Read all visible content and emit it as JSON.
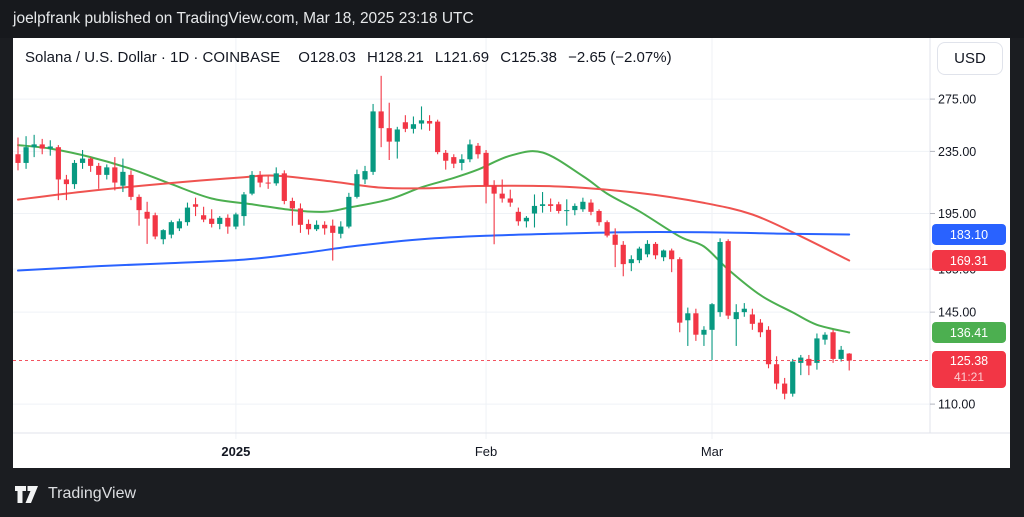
{
  "banner": {
    "text": "joelpfrank published on TradingView.com, Mar 18, 2025 23:18 UTC"
  },
  "header": {
    "title": "Solana / U.S. Dollar · 1D · COINBASE",
    "ohlc": [
      {
        "label": "O",
        "value": "O128.03"
      },
      {
        "label": "H",
        "value": "H128.21"
      },
      {
        "label": "L",
        "value": "L121.69"
      },
      {
        "label": "C",
        "value": "C125.38"
      }
    ],
    "change": "−2.65 (−2.07%)"
  },
  "currency_button": {
    "label": "USD"
  },
  "footer": {
    "brand": "TradingView"
  },
  "chart_data": {
    "type": "candlestick",
    "symbol": "Solana / U.S. Dollar",
    "interval": "1D",
    "exchange": "COINBASE",
    "scale": "log",
    "grid": true,
    "colors": {
      "up": "#089981",
      "down": "#f23645",
      "grid": "#eff2f6",
      "axis_border": "#e0e3eb",
      "axis_text": "#131722",
      "tick": "#b2b5be",
      "last_price_line": "#f23645"
    },
    "y_axis": {
      "tick_labels": [
        "275.00",
        "235.00",
        "195.00",
        "165.00",
        "145.00",
        "110.00"
      ],
      "tick_values": [
        275,
        235,
        195,
        165,
        145,
        110
      ]
    },
    "x_axis": {
      "labels": [
        {
          "text": "2025",
          "bar_index": 27,
          "bold": true
        },
        {
          "text": "Feb",
          "bar_index": 58,
          "bold": false
        },
        {
          "text": "Mar",
          "bar_index": 86,
          "bold": false
        }
      ]
    },
    "price_badges": [
      {
        "value": "183.10",
        "price": 183.1,
        "bg": "#2962ff",
        "name": "ma-blue-value"
      },
      {
        "value": "169.31",
        "price": 169.31,
        "bg": "#f23645",
        "name": "ma-red-value"
      },
      {
        "value": "136.41",
        "price": 136.41,
        "bg": "#4caf50",
        "name": "ma-green-value"
      },
      {
        "value": "125.38",
        "price": 125.38,
        "bg": "#f23645",
        "countdown": "41:21",
        "name": "last-price"
      }
    ],
    "last_price": {
      "price": 125.38
    },
    "overlays": [
      {
        "name": "ma-green",
        "color": "#4caf50",
        "points": [
          [
            0,
            239.5
          ],
          [
            4,
            237
          ],
          [
            9,
            231
          ],
          [
            14,
            223
          ],
          [
            19,
            213
          ],
          [
            24,
            204
          ],
          [
            29,
            200.5
          ],
          [
            34,
            197
          ],
          [
            38,
            196
          ],
          [
            41,
            198.5
          ],
          [
            46,
            203.5
          ],
          [
            50,
            211
          ],
          [
            54,
            217
          ],
          [
            57,
            222.5
          ],
          [
            61,
            232
          ],
          [
            65,
            234.2
          ],
          [
            70,
            218.2
          ],
          [
            73,
            207
          ],
          [
            77,
            196.3
          ],
          [
            82,
            182
          ],
          [
            85,
            176.6
          ],
          [
            88,
            164.8
          ],
          [
            92,
            152.6
          ],
          [
            96,
            144.9
          ],
          [
            99,
            139.6
          ],
          [
            103,
            136.41
          ]
        ]
      },
      {
        "name": "ma-red",
        "color": "#ef5350",
        "points": [
          [
            0,
            203.3
          ],
          [
            8,
            208.2
          ],
          [
            18,
            213.3
          ],
          [
            28,
            217.5
          ],
          [
            32,
            218.5
          ],
          [
            39,
            214.6
          ],
          [
            45,
            210.8
          ],
          [
            51,
            210.4
          ],
          [
            57,
            211.8
          ],
          [
            67,
            211.5
          ],
          [
            77,
            207.4
          ],
          [
            85,
            201.3
          ],
          [
            91,
            194.4
          ],
          [
            97,
            182.1
          ],
          [
            103,
            169.31
          ]
        ]
      },
      {
        "name": "ma-blue",
        "color": "#2962ff",
        "points": [
          [
            0,
            164.3
          ],
          [
            10,
            166.5
          ],
          [
            19,
            168
          ],
          [
            28,
            169.8
          ],
          [
            35,
            173
          ],
          [
            42,
            177
          ],
          [
            50,
            180.5
          ],
          [
            58,
            182.4
          ],
          [
            67,
            183.6
          ],
          [
            77,
            184.4
          ],
          [
            87,
            184.2
          ],
          [
            94,
            183.6
          ],
          [
            103,
            183.1
          ]
        ]
      }
    ],
    "candles": {
      "columns": [
        "date",
        "open",
        "high",
        "low",
        "close"
      ],
      "rows": [
        [
          "Dec 5",
          233,
          245,
          222,
          227
        ],
        [
          "Dec 6",
          227,
          246,
          223,
          238
        ],
        [
          "Dec 7",
          238,
          247,
          231,
          240
        ],
        [
          "Dec 8",
          240,
          244,
          233,
          237
        ],
        [
          "Dec 9",
          237,
          243,
          232,
          238.5
        ],
        [
          "Dec 10",
          238,
          239.5,
          203,
          216
        ],
        [
          "Dec 11",
          216,
          219,
          203,
          213
        ],
        [
          "Dec 12",
          213,
          229,
          210,
          227
        ],
        [
          "Dec 13",
          227,
          236,
          223,
          230
        ],
        [
          "Dec 14",
          230,
          231,
          221,
          225
        ],
        [
          "Dec 15",
          225,
          227,
          210,
          219
        ],
        [
          "Dec 16",
          219,
          226,
          216,
          224
        ],
        [
          "Dec 17",
          224,
          231,
          209,
          214
        ],
        [
          "Dec 18",
          212,
          230,
          208,
          221
        ],
        [
          "Dec 19",
          219,
          222,
          203,
          205
        ],
        [
          "Dec 20",
          205,
          206.5,
          188,
          197
        ],
        [
          "Dec 21",
          196,
          202,
          178,
          192
        ],
        [
          "Dec 22",
          194,
          195.5,
          180.5,
          182
        ],
        [
          "Dec 23",
          180.5,
          186,
          177.8,
          185.5
        ],
        [
          "Dec 24",
          183,
          191,
          181,
          190
        ],
        [
          "Dec 25",
          186.5,
          192,
          185,
          190.5
        ],
        [
          "Dec 26",
          190,
          201.5,
          188,
          198.5
        ],
        [
          "Dec 27",
          200.5,
          204.5,
          193.5,
          199
        ],
        [
          "Dec 28",
          194,
          199,
          190,
          191.5
        ],
        [
          "Dec 29",
          192,
          197.5,
          187,
          189
        ],
        [
          "Dec 30",
          189,
          193.5,
          186,
          192.5
        ],
        [
          "Dec 31",
          192.5,
          194.5,
          183.5,
          187.5
        ],
        [
          "Jan 1",
          187.5,
          195.5,
          186,
          194.5
        ],
        [
          "Jan 2",
          193.5,
          208,
          188,
          206.5
        ],
        [
          "Jan 3",
          207,
          221.5,
          206,
          219
        ],
        [
          "Jan 4",
          219,
          221.5,
          211,
          214
        ],
        [
          "Jan 5",
          214,
          218,
          210,
          213.5
        ],
        [
          "Jan 6",
          213.5,
          224,
          212,
          220
        ],
        [
          "Jan 7",
          220,
          222,
          200.5,
          202.5
        ],
        [
          "Jan 8",
          202.5,
          204.5,
          188,
          198
        ],
        [
          "Jan 9",
          198,
          201,
          184,
          188.5
        ],
        [
          "Jan 10",
          189,
          191.5,
          183,
          186
        ],
        [
          "Jan 11",
          186,
          191,
          185,
          188.5
        ],
        [
          "Jan 12",
          188.5,
          190.5,
          183,
          186.5
        ],
        [
          "Jan 13",
          188,
          191.5,
          169.3,
          184
        ],
        [
          "Jan 14",
          183.5,
          190.5,
          181,
          187.5
        ],
        [
          "Jan 15",
          187.5,
          207.5,
          186.5,
          205
        ],
        [
          "Jan 16",
          205,
          222.5,
          204,
          219.5
        ],
        [
          "Jan 17",
          216,
          225,
          213,
          221.5
        ],
        [
          "Jan 18",
          221,
          271,
          219,
          265
        ],
        [
          "Jan 19",
          265,
          294.9,
          238,
          252
        ],
        [
          "Jan 20",
          252,
          272,
          229,
          242
        ],
        [
          "Jan 21",
          242,
          253,
          230,
          251
        ],
        [
          "Jan 22",
          256.5,
          262,
          249,
          251.5
        ],
        [
          "Jan 23",
          251.5,
          261,
          248,
          255
        ],
        [
          "Jan 24",
          255.5,
          269,
          251,
          258
        ],
        [
          "Jan 25",
          257.5,
          262,
          250,
          255.5
        ],
        [
          "Jan 26",
          257,
          258.5,
          233,
          234.5
        ],
        [
          "Jan 27",
          234,
          236,
          222.5,
          228.5
        ],
        [
          "Jan 28",
          231,
          233,
          223.5,
          226.5
        ],
        [
          "Jan 29",
          227,
          233,
          222,
          229.5
        ],
        [
          "Jan 30",
          229.5,
          243.5,
          227.5,
          240
        ],
        [
          "Jan 31",
          239,
          241,
          230,
          233
        ],
        [
          "Feb 1",
          234,
          236,
          201,
          212
        ],
        [
          "Feb 2",
          212,
          215.5,
          177.8,
          207
        ],
        [
          "Feb 3",
          207,
          216,
          201.5,
          204
        ],
        [
          "Feb 4",
          204,
          209.5,
          199,
          201.5
        ],
        [
          "Feb 5",
          196,
          198.5,
          188,
          190.5
        ],
        [
          "Feb 6",
          190.5,
          193.5,
          187,
          192.5
        ],
        [
          "Feb 7",
          195,
          206.5,
          187,
          199.5
        ],
        [
          "Feb 8",
          199.5,
          208,
          195.5,
          200.5
        ],
        [
          "Feb 9",
          200.5,
          204,
          196,
          199.5
        ],
        [
          "Feb 10",
          200.5,
          202,
          195,
          196.5
        ],
        [
          "Feb 11",
          196.5,
          203.5,
          188,
          197
        ],
        [
          "Feb 12",
          197,
          201,
          194,
          199.5
        ],
        [
          "Feb 13",
          197.5,
          204.5,
          196,
          202
        ],
        [
          "Feb 14",
          201.5,
          203.5,
          194,
          196
        ],
        [
          "Feb 15",
          196.5,
          197.5,
          188,
          190
        ],
        [
          "Feb 16",
          190,
          191,
          181.5,
          182.5
        ],
        [
          "Feb 17",
          183,
          186.5,
          166,
          177.5
        ],
        [
          "Feb 18",
          177.5,
          179.5,
          161.5,
          167.5
        ],
        [
          "Feb 19",
          168,
          172,
          164,
          170
        ],
        [
          "Feb 20",
          169.5,
          176.5,
          168,
          175.5
        ],
        [
          "Feb 21",
          172.5,
          180,
          171,
          178
        ],
        [
          "Feb 22",
          178,
          179,
          170,
          172
        ],
        [
          "Feb 23",
          171,
          175,
          169,
          174.5
        ],
        [
          "Feb 24",
          174.5,
          175.5,
          163.5,
          170
        ],
        [
          "Feb 25",
          170,
          171,
          136.5,
          140.5
        ],
        [
          "Feb 26",
          141.5,
          147,
          131,
          144.5
        ],
        [
          "Feb 27",
          144.5,
          146.5,
          133,
          135.5
        ],
        [
          "Feb 28",
          135.5,
          139,
          131,
          137.5
        ],
        [
          "Mar 1",
          137.5,
          149,
          125.6,
          148.5
        ],
        [
          "Mar 2",
          145,
          181,
          143,
          179
        ],
        [
          "Mar 3",
          179.5,
          180.5,
          142,
          143.5
        ],
        [
          "Mar 4",
          142,
          148.5,
          131,
          145
        ],
        [
          "Mar 5",
          145,
          149,
          143,
          146.5
        ],
        [
          "Mar 6",
          144,
          146.5,
          137.5,
          140
        ],
        [
          "Mar 7",
          140.5,
          142,
          134.5,
          136.5
        ],
        [
          "Mar 8",
          137.5,
          139,
          122.5,
          124
        ],
        [
          "Mar 9",
          124,
          127,
          115,
          117
        ],
        [
          "Mar 10",
          117,
          119,
          111.6,
          113.5
        ],
        [
          "Mar 11",
          113.5,
          126,
          112.5,
          125
        ],
        [
          "Mar 12",
          124.5,
          127.5,
          120,
          126.5
        ],
        [
          "Mar 13",
          126,
          127.5,
          120,
          123.5
        ],
        [
          "Mar 14",
          124.5,
          136,
          122,
          134
        ],
        [
          "Mar 15",
          133.5,
          136.5,
          131.5,
          135.5
        ],
        [
          "Mar 16",
          136.5,
          137.5,
          124.5,
          126
        ],
        [
          "Mar 17",
          126,
          131,
          125,
          129.5
        ],
        [
          "Mar 18",
          128.03,
          128.21,
          121.69,
          125.38
        ]
      ]
    }
  }
}
